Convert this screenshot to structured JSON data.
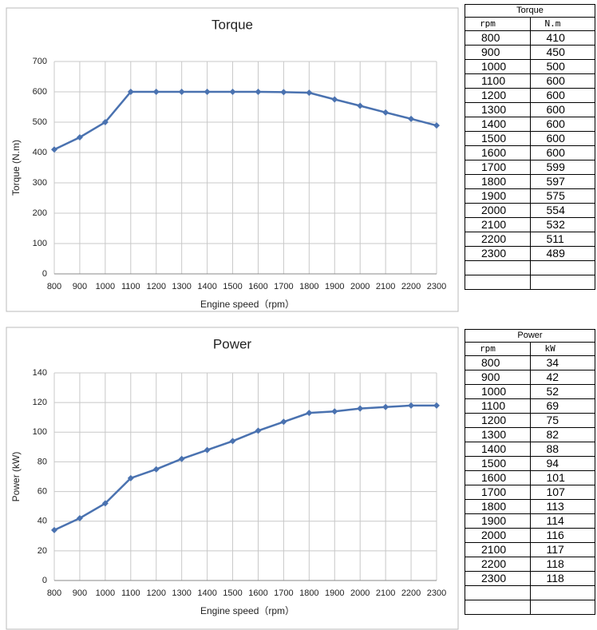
{
  "chart_data": [
    {
      "type": "line",
      "title": "Torque",
      "x_label": "Engine speed（rpm）",
      "y_label": "Torque (N.m)",
      "x": [
        800,
        900,
        1000,
        1100,
        1200,
        1300,
        1400,
        1500,
        1600,
        1700,
        1800,
        1900,
        2000,
        2100,
        2200,
        2300
      ],
      "values": [
        410,
        450,
        500,
        600,
        600,
        600,
        600,
        600,
        600,
        599,
        597,
        575,
        554,
        532,
        511,
        489
      ],
      "color": "#4a72b0",
      "xlim": [
        800,
        2300
      ],
      "xticks": [
        800,
        900,
        1000,
        1100,
        1200,
        1300,
        1400,
        1500,
        1600,
        1700,
        1800,
        1900,
        2000,
        2100,
        2200,
        2300
      ],
      "ylim": [
        0,
        700
      ],
      "yticks": [
        0,
        100,
        200,
        300,
        400,
        500,
        600,
        700
      ],
      "grid": true
    },
    {
      "type": "line",
      "title": "Power",
      "x_label": "Engine speed（rpm）",
      "y_label": "Power (kW)",
      "x": [
        800,
        900,
        1000,
        1100,
        1200,
        1300,
        1400,
        1500,
        1600,
        1700,
        1800,
        1900,
        2000,
        2100,
        2200,
        2300
      ],
      "values": [
        34,
        42,
        52,
        69,
        75,
        82,
        88,
        94,
        101,
        107,
        113,
        114,
        116,
        117,
        118,
        118
      ],
      "color": "#4a72b0",
      "xlim": [
        800,
        2300
      ],
      "xticks": [
        800,
        900,
        1000,
        1100,
        1200,
        1300,
        1400,
        1500,
        1600,
        1700,
        1800,
        1900,
        2000,
        2100,
        2200,
        2300
      ],
      "ylim": [
        0,
        140
      ],
      "yticks": [
        0,
        20,
        40,
        60,
        80,
        100,
        120,
        140
      ],
      "grid": true
    }
  ],
  "tables": [
    {
      "title": "Torque",
      "header": [
        "rpm",
        "N.m"
      ],
      "rows": [
        [
          800,
          410
        ],
        [
          900,
          450
        ],
        [
          1000,
          500
        ],
        [
          1100,
          600
        ],
        [
          1200,
          600
        ],
        [
          1300,
          600
        ],
        [
          1400,
          600
        ],
        [
          1500,
          600
        ],
        [
          1600,
          600
        ],
        [
          1700,
          599
        ],
        [
          1800,
          597
        ],
        [
          1900,
          575
        ],
        [
          2000,
          554
        ],
        [
          2100,
          532
        ],
        [
          2200,
          511
        ],
        [
          2300,
          489
        ]
      ]
    },
    {
      "title": "Power",
      "header": [
        "rpm",
        "kW"
      ],
      "rows": [
        [
          800,
          34
        ],
        [
          900,
          42
        ],
        [
          1000,
          52
        ],
        [
          1100,
          69
        ],
        [
          1200,
          75
        ],
        [
          1300,
          82
        ],
        [
          1400,
          88
        ],
        [
          1500,
          94
        ],
        [
          1600,
          101
        ],
        [
          1700,
          107
        ],
        [
          1800,
          113
        ],
        [
          1900,
          114
        ],
        [
          2000,
          116
        ],
        [
          2100,
          117
        ],
        [
          2200,
          118
        ],
        [
          2300,
          118
        ]
      ]
    }
  ]
}
